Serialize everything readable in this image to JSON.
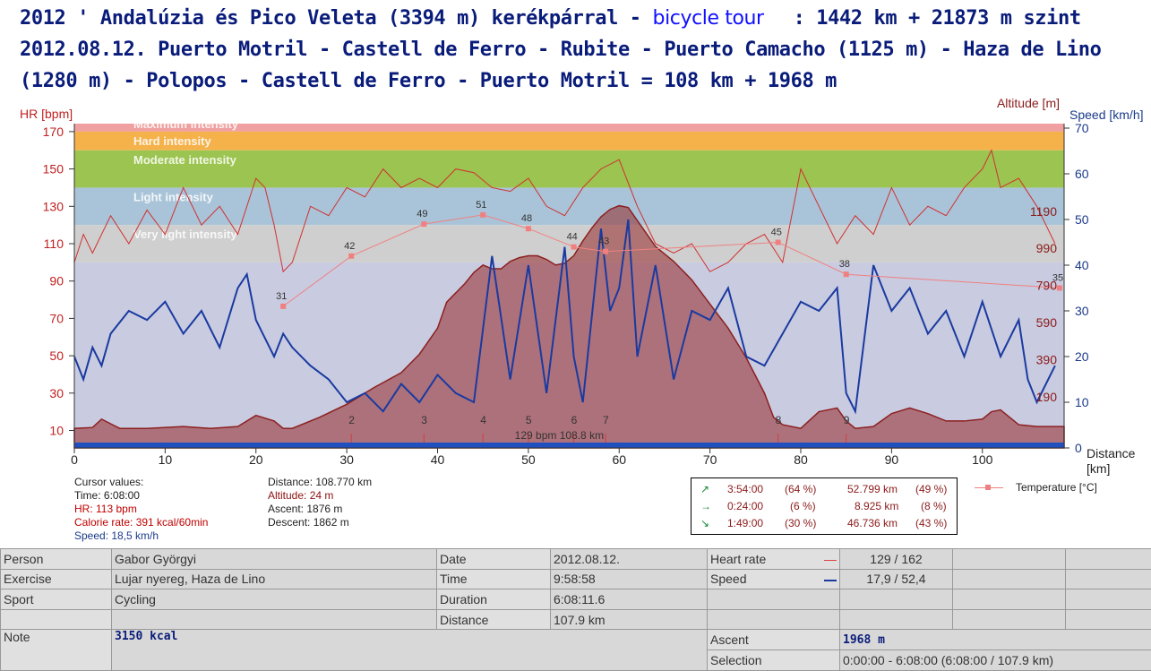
{
  "title": {
    "line1_a": "2012 ' Andalúzia és Pico Veleta (3394 m) kerékpárral -",
    "line1_blue": "bicycle tour",
    "line1_b": ": 1442 km + 21873 m szint",
    "line2": "2012.08.12. Puerto Motril - Castell de Ferro - Rubite - Puerto Camacho (1125 m) - Haza de Lino",
    "line3": "(1280 m) - Polopos - Castell de Ferro - Puerto Motril = 108 km + 1968 m"
  },
  "chart_data": {
    "type": "line",
    "x_label": "Distance [km]",
    "xlim": [
      0,
      109
    ],
    "x_ticks": [
      "0",
      "10",
      "20",
      "30",
      "40",
      "50",
      "60",
      "70",
      "80",
      "90",
      "100"
    ],
    "y_left_label": "HR [bpm]",
    "y_left_ticks": [
      "170",
      "150",
      "130",
      "110",
      "90",
      "70",
      "50",
      "30",
      "10"
    ],
    "y_left_range": [
      0,
      170
    ],
    "y_alt_label": "Altitude [m]",
    "y_alt_ticks": [
      "1190",
      "990",
      "790",
      "590",
      "390",
      "190"
    ],
    "y_right_label": "Speed [km/h]",
    "y_right_ticks": [
      "70",
      "60",
      "50",
      "40",
      "30",
      "20",
      "10",
      "0"
    ],
    "zones": [
      {
        "name": "Maximum intensity",
        "from": 170,
        "to": 180,
        "color": "#f0a0a0"
      },
      {
        "name": "Hard intensity",
        "from": 160,
        "to": 170,
        "color": "#f5b14a"
      },
      {
        "name": "Moderate intensity",
        "from": 140,
        "to": 160,
        "color": "#9cc450"
      },
      {
        "name": "Light intensity",
        "from": 120,
        "to": 140,
        "color": "#a9c4d8"
      },
      {
        "name": "Very light intensity",
        "from": 100,
        "to": 120,
        "color": "#cfcfcf"
      },
      {
        "name": "",
        "from": 0,
        "to": 100,
        "color": "#c9cbe0"
      }
    ],
    "altitude": {
      "name": "Altitude",
      "color": "#8b2020",
      "x": [
        0,
        2,
        3,
        5,
        8,
        12,
        15,
        18,
        20,
        22,
        23,
        24,
        27,
        30,
        33,
        36,
        38,
        40,
        41,
        43,
        44,
        45,
        46,
        47,
        48,
        49,
        50,
        51,
        52,
        53,
        54,
        55,
        56,
        57,
        58,
        59,
        60,
        61,
        62,
        63,
        64,
        66,
        68,
        70,
        72,
        74,
        76,
        77,
        78,
        80,
        82,
        84,
        85,
        86,
        88,
        90,
        92,
        94,
        96,
        98,
        100,
        101,
        102,
        104,
        106,
        108,
        109
      ],
      "y": [
        20,
        25,
        70,
        20,
        20,
        30,
        20,
        30,
        90,
        60,
        20,
        20,
        80,
        150,
        240,
        320,
        420,
        560,
        700,
        800,
        860,
        900,
        880,
        880,
        920,
        940,
        950,
        950,
        930,
        900,
        910,
        950,
        1030,
        1100,
        1160,
        1200,
        1220,
        1210,
        1140,
        1070,
        1000,
        920,
        820,
        690,
        560,
        400,
        210,
        80,
        40,
        20,
        110,
        130,
        60,
        20,
        30,
        100,
        130,
        100,
        60,
        60,
        70,
        110,
        120,
        40,
        30,
        30,
        30
      ]
    },
    "heart_rate": {
      "name": "Heart rate",
      "color": "#d03030",
      "avg_max": "129 / 162",
      "x": [
        0,
        1,
        2,
        4,
        6,
        8,
        10,
        12,
        14,
        16,
        18,
        20,
        21,
        22,
        23,
        24,
        26,
        28,
        30,
        32,
        34,
        36,
        38,
        40,
        42,
        44,
        46,
        48,
        50,
        52,
        54,
        56,
        58,
        60,
        62,
        64,
        66,
        68,
        70,
        72,
        74,
        76,
        78,
        80,
        82,
        84,
        86,
        88,
        90,
        92,
        94,
        96,
        98,
        100,
        101,
        102,
        104,
        106,
        108
      ],
      "y": [
        100,
        115,
        105,
        125,
        110,
        128,
        115,
        140,
        120,
        130,
        115,
        145,
        140,
        120,
        95,
        100,
        130,
        125,
        140,
        135,
        150,
        140,
        145,
        140,
        150,
        148,
        140,
        138,
        145,
        130,
        125,
        140,
        150,
        155,
        130,
        110,
        105,
        110,
        95,
        100,
        110,
        115,
        100,
        150,
        130,
        110,
        125,
        115,
        140,
        120,
        130,
        125,
        140,
        150,
        160,
        140,
        145,
        130,
        110
      ]
    },
    "speed": {
      "name": "Speed",
      "color": "#1a3aa0",
      "avg_max": "17,9 / 52,4",
      "x": [
        0,
        1,
        2,
        3,
        4,
        6,
        8,
        10,
        12,
        14,
        16,
        18,
        19,
        20,
        22,
        23,
        24,
        26,
        28,
        30,
        32,
        34,
        36,
        38,
        40,
        42,
        44,
        46,
        48,
        50,
        52,
        54,
        55,
        56,
        58,
        59,
        60,
        61,
        62,
        64,
        66,
        68,
        70,
        72,
        74,
        76,
        78,
        80,
        82,
        84,
        85,
        86,
        88,
        90,
        92,
        94,
        96,
        98,
        100,
        102,
        104,
        105,
        106,
        108
      ],
      "y": [
        20,
        15,
        22,
        18,
        25,
        30,
        28,
        32,
        25,
        30,
        22,
        35,
        38,
        28,
        20,
        25,
        22,
        18,
        15,
        10,
        12,
        8,
        14,
        10,
        16,
        12,
        10,
        42,
        15,
        40,
        12,
        44,
        20,
        10,
        48,
        30,
        35,
        50,
        20,
        40,
        15,
        30,
        28,
        35,
        20,
        18,
        25,
        32,
        30,
        35,
        12,
        8,
        40,
        30,
        35,
        25,
        30,
        20,
        32,
        20,
        28,
        15,
        10,
        18
      ]
    },
    "temperature": {
      "name": "Temperature [°C]",
      "color": "#f08080",
      "x": [
        23,
        30.5,
        38.5,
        45,
        50,
        55,
        58.5,
        77.5,
        85,
        108.5
      ],
      "y": [
        31,
        42,
        49,
        51,
        48,
        44,
        43,
        45,
        38,
        35
      ]
    },
    "lap_markers": [
      "2",
      "3",
      "4",
      "5",
      "6",
      "7",
      "8",
      "9"
    ],
    "lap_x": [
      30.5,
      38.5,
      45,
      50,
      55,
      58.5,
      77.5,
      85
    ],
    "summary_label": "129 bpm 108.8 km"
  },
  "cursor": {
    "header": "Cursor values:",
    "time": "Time: 6:08:00",
    "hr": "HR: 113 bpm",
    "calorie": "Calorie rate: 391 kcal/60min",
    "speed": "Speed: 18,5 km/h",
    "distance": "Distance: 108.770 km",
    "altitude": "Altitude: 24 m",
    "ascent": "Ascent: 1876 m",
    "descent": "Descent: 1862 m"
  },
  "stats": [
    {
      "arrow": "↗",
      "time": "3:54:00",
      "pct": "(64 %)",
      "dist": "52.799 km",
      "dpct": "(49 %)"
    },
    {
      "arrow": "→",
      "time": "0:24:00",
      "pct": "(6 %)",
      "dist": "8.925 km",
      "dpct": "(8 %)"
    },
    {
      "arrow": "↘",
      "time": "1:49:00",
      "pct": "(30 %)",
      "dist": "46.736 km",
      "dpct": "(43 %)"
    }
  ],
  "legend": {
    "temperature": "Temperature [°C]"
  },
  "info": {
    "person_lbl": "Person",
    "person": "Gabor Györgyi",
    "exercise_lbl": "Exercise",
    "exercise": "Lujar nyereg, Haza de Lino",
    "sport_lbl": "Sport",
    "sport": "Cycling",
    "note_lbl": "Note",
    "note": "3150 kcal",
    "date_lbl": "Date",
    "date": "2012.08.12.",
    "time_lbl": "Time",
    "time": "9:58:58",
    "duration_lbl": "Duration",
    "duration": "6:08:11.6",
    "distance_lbl": "Distance",
    "distance": "107.9 km",
    "hr_lbl": "Heart rate",
    "hr": "129 / 162",
    "speed_lbl": "Speed",
    "speed": "17,9 / 52,4",
    "ascent_lbl": "Ascent",
    "ascent": "1968 m",
    "selection_lbl": "Selection",
    "selection": "0:00:00 - 6:08:00 (6:08:00 / 107.9 km)"
  }
}
